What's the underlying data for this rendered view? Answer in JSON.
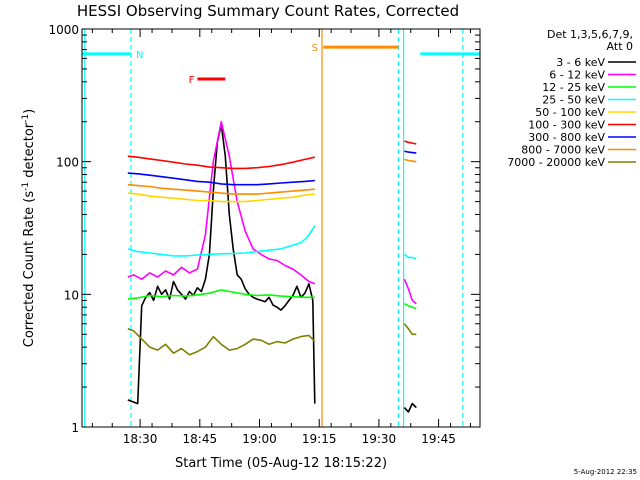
{
  "chart_data": {
    "type": "line",
    "title": "HESSI Observing Summary Count Rates, Corrected",
    "xlabel": "Start Time (05-Aug-12 18:15:22)",
    "ylabel_parts": [
      "Corrected Count Rate (s",
      "-1",
      " detector",
      "-1",
      ")"
    ],
    "x_unit": "minutes after 18:15:22",
    "xlim": [
      0,
      100
    ],
    "x_ticks": [
      {
        "label": "18:30",
        "x": 14.6
      },
      {
        "label": "18:45",
        "x": 29.6
      },
      {
        "label": "19:00",
        "x": 44.6
      },
      {
        "label": "19:15",
        "x": 59.6
      },
      {
        "label": "19:30",
        "x": 74.6
      },
      {
        "label": "19:45",
        "x": 89.6
      }
    ],
    "y_scale": "log",
    "ylim": [
      1,
      1000
    ],
    "y_ticks": [
      {
        "label": "1",
        "y": 1
      },
      {
        "label": "10",
        "y": 10
      },
      {
        "label": "100",
        "y": 100
      },
      {
        "label": "1000",
        "y": 1000
      }
    ],
    "legend": {
      "header": [
        "Det 1,3,5,6,7,9,",
        "Att 0"
      ],
      "position": "right"
    },
    "series": [
      {
        "name": "3 - 6 keV",
        "color": "#000000",
        "segments": [
          {
            "x": [
              11.5,
              14,
              15,
              16,
              17,
              18,
              19,
              20,
              21,
              22,
              23,
              24,
              25,
              26,
              27,
              28,
              29,
              30,
              31,
              32,
              33,
              34,
              35,
              36,
              37,
              38,
              39,
              40,
              41,
              42,
              43,
              44,
              45,
              46,
              47,
              48,
              49,
              50,
              51,
              52,
              53,
              54,
              55,
              56,
              57,
              58,
              58.5
            ],
            "y": [
              1.6,
              1.5,
              8.2,
              9.5,
              10.3,
              9.0,
              11.5,
              10.0,
              10.8,
              9.2,
              12.5,
              10.8,
              10.0,
              9.2,
              10.5,
              9.8,
              11.2,
              10.5,
              13.0,
              20,
              60,
              140,
              190,
              110,
              40,
              22,
              14,
              13,
              11,
              10,
              9.5,
              9.2,
              9.0,
              8.8,
              9.5,
              8.3,
              8.0,
              7.6,
              8.2,
              9.0,
              9.8,
              11.5,
              9.5,
              10.2,
              12.0,
              9.0,
              1.5
            ]
          },
          {
            "x": [
              81,
              82,
              83,
              84
            ],
            "y": [
              1.4,
              1.3,
              1.5,
              1.4
            ]
          }
        ]
      },
      {
        "name": "6 - 12 keV",
        "color": "#ff00ff",
        "segments": [
          {
            "x": [
              11.5,
              13,
              15,
              17,
              19,
              21,
              23,
              25,
              27,
              29,
              31,
              33,
              35,
              37,
              39,
              41,
              43,
              45,
              47,
              49,
              51,
              53,
              55,
              57,
              58.5
            ],
            "y": [
              13.5,
              14,
              13,
              14.5,
              13.5,
              15,
              14,
              16,
              14.5,
              15.5,
              28,
              100,
              200,
              110,
              50,
              30,
              22,
              20,
              18.5,
              18,
              16.5,
              15.5,
              14,
              12.5,
              12
            ]
          },
          {
            "x": [
              81,
              82,
              83,
              84
            ],
            "y": [
              13,
              11,
              9,
              8.5
            ]
          }
        ]
      },
      {
        "name": "12 - 25 keV",
        "color": "#00ff00",
        "segments": [
          {
            "x": [
              11.5,
              14,
              17,
              20,
              23,
              26,
              29,
              32,
              35,
              38,
              41,
              44,
              47,
              50,
              53,
              56,
              58.5
            ],
            "y": [
              9.2,
              9.4,
              9.8,
              9.6,
              9.8,
              9.7,
              9.9,
              10.2,
              10.8,
              10.4,
              10.0,
              9.8,
              9.9,
              9.7,
              9.6,
              9.5,
              9.5
            ]
          },
          {
            "x": [
              81,
              82,
              83,
              84
            ],
            "y": [
              8.5,
              8.2,
              8.0,
              7.8
            ]
          }
        ]
      },
      {
        "name": "25 - 50 keV",
        "color": "#00ffff",
        "segments": [
          {
            "x": [
              11.5,
              14,
              17,
              20,
              23,
              26,
              29,
              32,
              35,
              38,
              41,
              44,
              47,
              50,
              53,
              55,
              56,
              57,
              58,
              58.5
            ],
            "y": [
              22,
              21,
              20.5,
              20,
              19.5,
              19.5,
              19.8,
              20,
              20.2,
              20.3,
              20.5,
              21,
              21.5,
              22,
              23.5,
              24.5,
              26,
              28,
              31,
              33
            ]
          },
          {
            "x": [
              81,
              82,
              83,
              84
            ],
            "y": [
              20,
              19,
              19,
              18.5
            ]
          }
        ]
      },
      {
        "name": "50 - 100 keV",
        "color": "#ffd700",
        "segments": [
          {
            "x": [
              11.5,
              14,
              17,
              20,
              23,
              26,
              29,
              32,
              35,
              38,
              41,
              44,
              47,
              50,
              53,
              56,
              58.5
            ],
            "y": [
              58,
              57,
              55,
              54,
              53,
              52,
              51,
              51,
              50,
              50,
              50,
              51,
              52,
              53,
              54,
              56,
              57
            ]
          }
        ]
      },
      {
        "name": "100 - 300 keV",
        "color": "#ff0000",
        "segments": [
          {
            "x": [
              11.5,
              14,
              17,
              20,
              23,
              26,
              29,
              32,
              35,
              38,
              41,
              44,
              47,
              50,
              53,
              56,
              58.5
            ],
            "y": [
              110,
              108,
              105,
              102,
              99,
              96,
              94,
              91,
              90,
              89,
              89,
              90,
              92,
              95,
              99,
              104,
              108
            ]
          },
          {
            "x": [
              81,
              82,
              83,
              84
            ],
            "y": [
              143,
              140,
              138,
              136
            ]
          }
        ]
      },
      {
        "name": "300 - 800 keV",
        "color": "#0000ff",
        "segments": [
          {
            "x": [
              11.5,
              14,
              17,
              20,
              23,
              26,
              29,
              32,
              35,
              38,
              41,
              44,
              47,
              50,
              53,
              56,
              58.5
            ],
            "y": [
              82,
              81,
              79,
              77,
              75,
              73,
              71,
              70,
              68,
              67,
              67,
              67,
              68,
              69,
              70,
              71,
              72
            ]
          },
          {
            "x": [
              81,
              82,
              83,
              84
            ],
            "y": [
              120,
              118,
              117,
              116
            ]
          }
        ]
      },
      {
        "name": "800 - 7000 keV",
        "color": "#ff8c00",
        "segments": [
          {
            "x": [
              11.5,
              14,
              17,
              20,
              23,
              26,
              29,
              32,
              35,
              38,
              41,
              44,
              47,
              50,
              53,
              56,
              58.5
            ],
            "y": [
              67,
              66,
              65,
              63,
              62,
              61,
              60,
              59,
              58,
              57,
              57,
              57,
              58,
              59,
              60,
              61,
              62
            ]
          },
          {
            "x": [
              81,
              82,
              83,
              84
            ],
            "y": [
              104,
              102,
              101,
              100
            ]
          }
        ]
      },
      {
        "name": "7000 - 20000 keV",
        "color": "#808000",
        "segments": [
          {
            "x": [
              11.5,
              13,
              15,
              17,
              19,
              21,
              23,
              25,
              27,
              29,
              31,
              33,
              35,
              37,
              39,
              41,
              43,
              45,
              47,
              49,
              51,
              53,
              55,
              57,
              58.5
            ],
            "y": [
              5.5,
              5.3,
              4.6,
              4.0,
              3.8,
              4.2,
              3.6,
              3.9,
              3.5,
              3.7,
              4.0,
              4.8,
              4.2,
              3.8,
              3.9,
              4.2,
              4.6,
              4.5,
              4.2,
              4.4,
              4.3,
              4.6,
              4.8,
              4.9,
              4.4
            ]
          },
          {
            "x": [
              81,
              82,
              83,
              84
            ],
            "y": [
              6,
              5.5,
              5,
              5
            ]
          }
        ]
      }
    ],
    "flags": [
      {
        "label": "N",
        "color": "#00ffff",
        "label_x": 14.5,
        "label_y": 650,
        "y": 650,
        "bars": [
          [
            0,
            12.3
          ],
          [
            85,
            100
          ]
        ]
      },
      {
        "label": "F",
        "color": "#ff0000",
        "label_x": 27.5,
        "label_y": 420,
        "y": 420,
        "bars": [
          [
            29,
            36
          ]
        ]
      },
      {
        "label": "S",
        "color": "#ff8c00",
        "label_x": 58.5,
        "label_y": 730,
        "y": 730,
        "bars": [
          [
            60.6,
            79.5
          ]
        ]
      }
    ],
    "vertical_lines": [
      {
        "x": 0.7,
        "color": "#00ffff",
        "style": "solid"
      },
      {
        "x": 12.3,
        "color": "#00ffff",
        "style": "dashed"
      },
      {
        "x": 60.3,
        "color": "#ff8c00",
        "style": "solid"
      },
      {
        "x": 79.5,
        "color": "#00ffff",
        "style": "dashed"
      },
      {
        "x": 80.8,
        "color": "#00ffff",
        "style": "solid"
      },
      {
        "x": 95.7,
        "color": "#00ffff",
        "style": "dashed"
      }
    ],
    "timestamp": "5-Aug-2012 22:35"
  }
}
